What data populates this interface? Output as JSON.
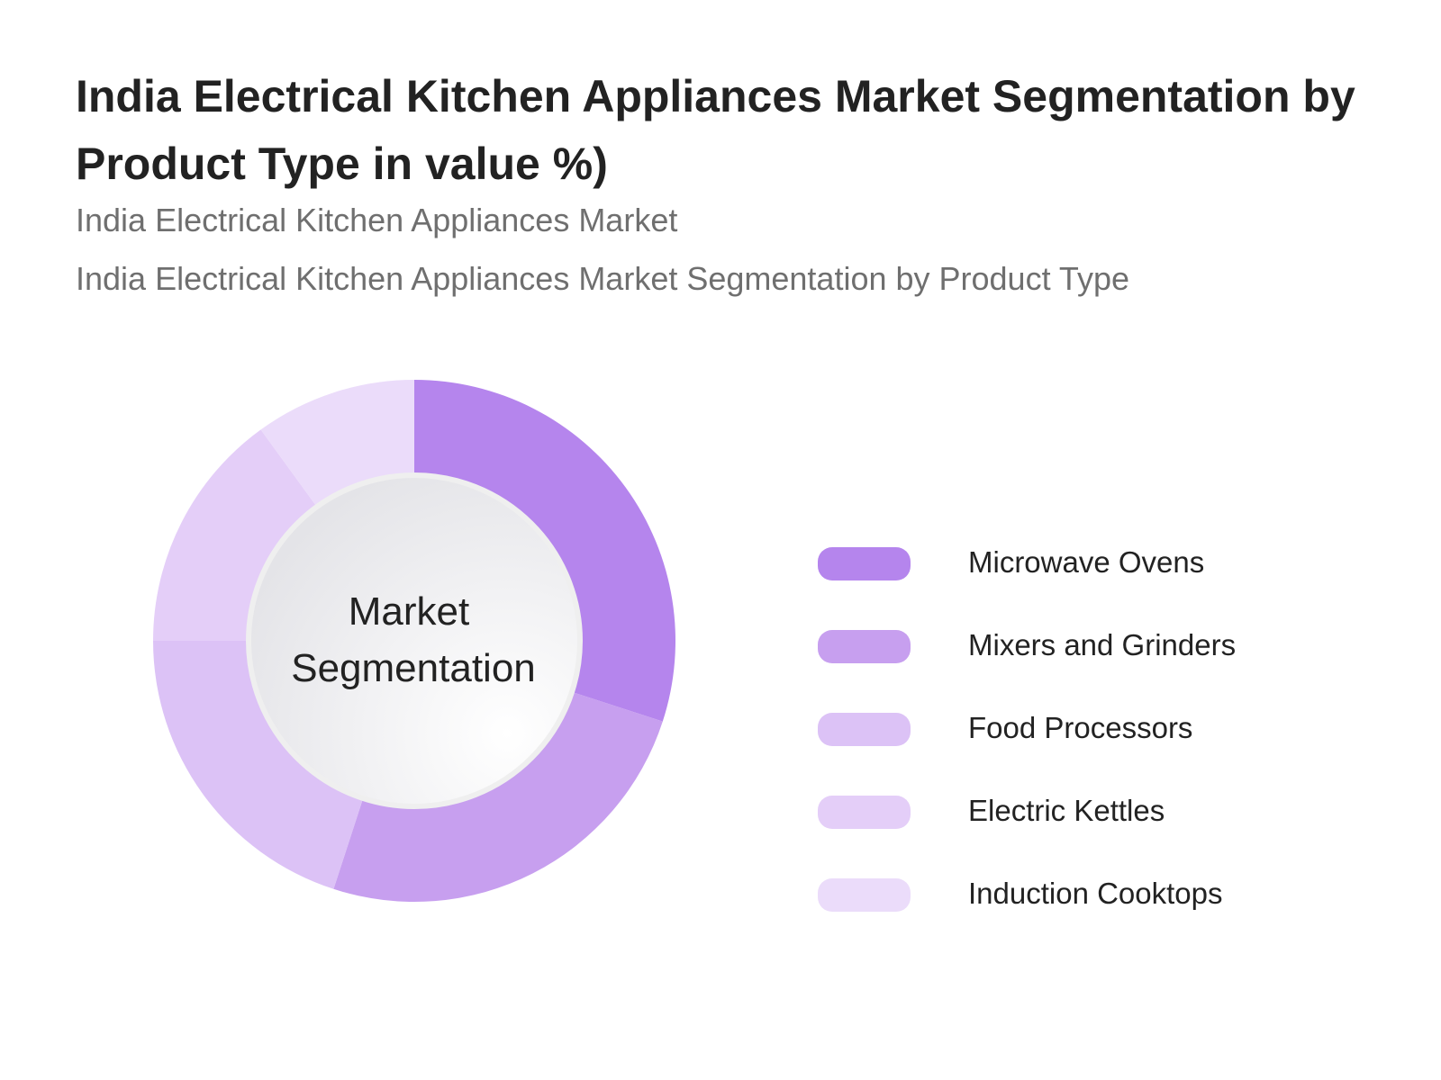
{
  "header": {
    "title": "India Electrical Kitchen Appliances Market Segmentation by Product Type in value %)",
    "subtitle_1": "India Electrical Kitchen Appliances Market",
    "subtitle_2": "India Electrical Kitchen Appliances Market Segmentation by Product Type"
  },
  "chart_data": {
    "type": "pie",
    "variant": "donut",
    "title": "India Electrical Kitchen Appliances Market Segmentation by Product Type in value %)",
    "center_label": [
      "Market",
      "Segmentation"
    ],
    "categories": [
      "Microwave Ovens",
      "Mixers and Grinders",
      "Food Processors",
      "Electric Kettles",
      "Induction Cooktops"
    ],
    "values": [
      30,
      25,
      20,
      15,
      10
    ],
    "unit": "%",
    "colors": [
      "#b585ed",
      "#c79fef",
      "#dcc2f6",
      "#e4cef8",
      "#ebdcfa"
    ],
    "legend_position": "right"
  }
}
